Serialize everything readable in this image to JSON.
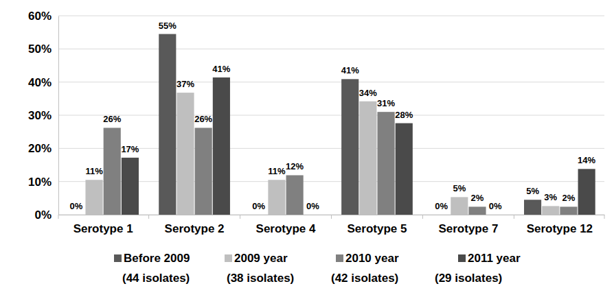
{
  "chart_data": {
    "type": "bar",
    "categories": [
      "Serotype 1",
      "Serotype 2",
      "Serotype 4",
      "Serotype 5",
      "Serotype 7",
      "Serotype 12"
    ],
    "series": [
      {
        "name": "Before 2009 (44 isolates)",
        "color": "#595959",
        "values": [
          0,
          54.5,
          0,
          40.9,
          0,
          4.5
        ],
        "value_labels": [
          "0%",
          "55%",
          "0%",
          "41%",
          "0%",
          "5%"
        ]
      },
      {
        "name": "2009 year (38 isolates)",
        "color": "#bfbfbf",
        "values": [
          10.5,
          36.8,
          10.5,
          34.2,
          5.3,
          2.6
        ],
        "value_labels": [
          "11%",
          "37%",
          "11%",
          "34%",
          "5%",
          "3%"
        ]
      },
      {
        "name": "2010 year (42 isolates)",
        "color": "#808080",
        "values": [
          26.2,
          26.2,
          11.9,
          31,
          2.4,
          2.4
        ],
        "value_labels": [
          "26%",
          "26%",
          "12%",
          "31%",
          "2%",
          "2%"
        ]
      },
      {
        "name": "2011 year (29 isolates)",
        "color": "#4a4a4a",
        "values": [
          17.2,
          41.4,
          0,
          27.6,
          0,
          13.8
        ],
        "value_labels": [
          "17%",
          "41%",
          "0%",
          "28%",
          "0%",
          "14%"
        ]
      }
    ],
    "ylim": [
      0,
      60
    ],
    "yticks": [
      {
        "value": 0,
        "label": "0%"
      },
      {
        "value": 10,
        "label": "10%"
      },
      {
        "value": 20,
        "label": "20%"
      },
      {
        "value": 30,
        "label": "30%"
      },
      {
        "value": 40,
        "label": "40%"
      },
      {
        "value": 50,
        "label": "50%"
      },
      {
        "value": 60,
        "label": "60%"
      }
    ],
    "grid": true,
    "legend": "bottom",
    "data_labels": true
  }
}
